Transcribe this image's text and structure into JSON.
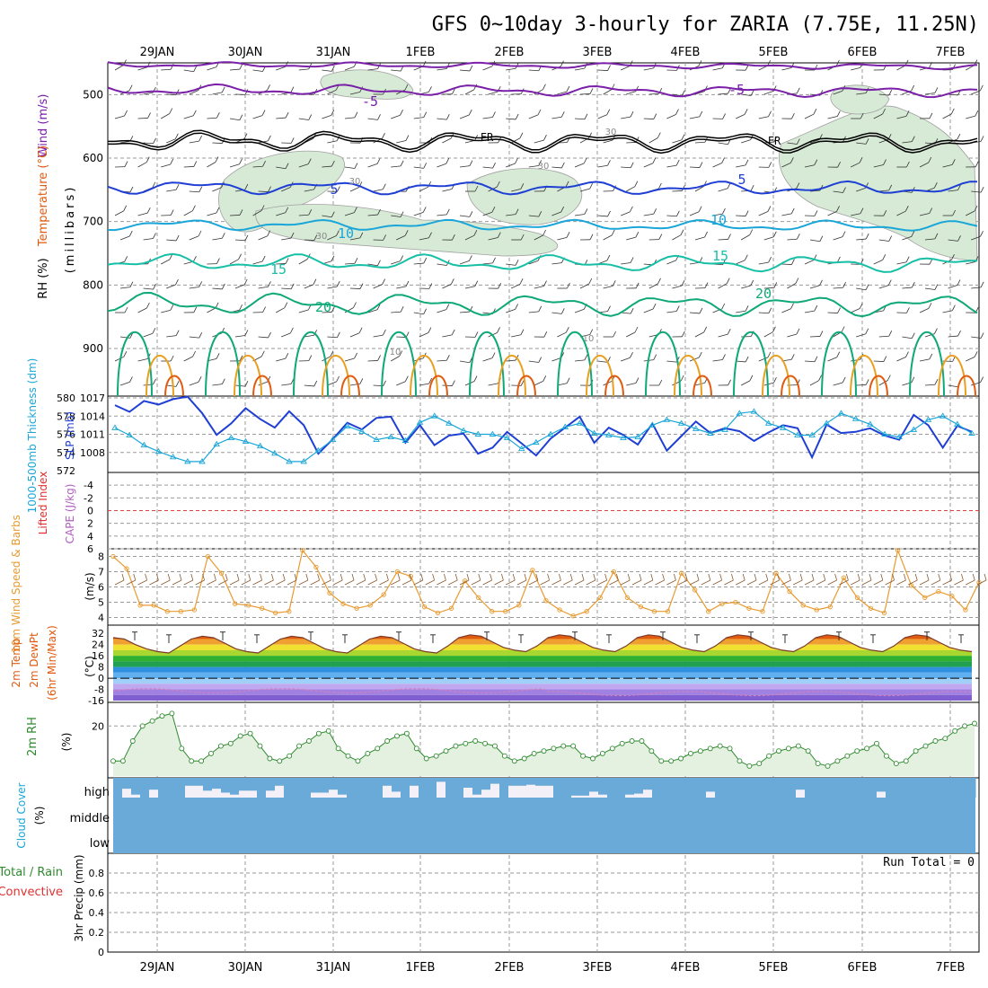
{
  "title": "GFS 0~10day 3-hourly for ZARIA (7.75E, 11.25N)",
  "dates": [
    "29JAN",
    "30JAN",
    "31JAN",
    "1FEB",
    "2FEB",
    "3FEB",
    "4FEB",
    "5FEB",
    "6FEB",
    "7FEB"
  ],
  "colors": {
    "purple": "#7a1fa8",
    "black": "#000000",
    "blue": "#1f3fd4",
    "cyan": "#1aa6d8",
    "teal": "#16bfa6",
    "green": "#0fa878",
    "orange": "#e8a020",
    "red_orange": "#e05a10",
    "rh_fill": "#d6ead6",
    "cloud": "#6aaad8",
    "cloud_gap": "#f4f0f8",
    "temp_fill_top": "#e05a10",
    "wind_line": "#e89a30",
    "rh_line": "#2e8a2e"
  },
  "upper_air": {
    "left_labels": {
      "wind": "Wind (m/s)",
      "temperature": "Temperature (°C)",
      "rh": "RH (%)",
      "pressure": "(millibars)"
    },
    "pressure_ticks": [
      "500",
      "600",
      "700",
      "800",
      "900"
    ],
    "isotherm_labels": [
      "-5",
      "-5",
      "FR",
      "FR",
      "5",
      "5",
      "10",
      "10",
      "15",
      "15",
      "20",
      "20"
    ],
    "rh_contour_labels": [
      "30",
      "30",
      "30",
      "30",
      "10",
      "10"
    ]
  },
  "slp_panel": {
    "left_label_thickness": "1000-500mb Thickness (dm)",
    "right_label_slp": "SLP (mb)",
    "thickness_ticks": [
      "580",
      "578",
      "576",
      "574",
      "572"
    ],
    "slp_ticks": [
      "1017",
      "1014",
      "1011",
      "1008"
    ]
  },
  "cape_panel": {
    "label_li": "Lifted Index",
    "label_cape": "CAPE (J/kg)",
    "ticks": [
      "-4",
      "-2",
      "0",
      "2",
      "4",
      "6"
    ]
  },
  "wind10_panel": {
    "label_left": "10m Wind Speed & Barbs",
    "label_units": "(m/s)",
    "ticks": [
      "8",
      "7",
      "6",
      "5",
      "4"
    ]
  },
  "temp_panel": {
    "label_left": "2m Temp",
    "label_mid": "2m DewPt",
    "label_sub": "(6hr Min/Max)",
    "label_units": "(°C)",
    "ticks": [
      "32",
      "24",
      "16",
      "8",
      "0",
      "-8",
      "-16"
    ]
  },
  "rh_panel": {
    "label_left": "2m RH",
    "label_units": "(%)",
    "ticks": [
      "20"
    ]
  },
  "cloud_panel": {
    "label_left": "Cloud Cover",
    "label_units": "(%)",
    "levels": [
      "high",
      "middle",
      "low"
    ]
  },
  "precip_panel": {
    "label_total": "Total / Rain",
    "label_conv": "Convective",
    "label_left": "3hr Precip (mm)",
    "run_total": "Run Total = 0",
    "ticks": [
      "0.8",
      "0.6",
      "0.4",
      "0.2",
      "0"
    ]
  },
  "chart_data": [
    {
      "type": "line",
      "name": "slp",
      "title": "",
      "ylabel": "SLP (mb)",
      "ylim": [
        1005,
        1017
      ],
      "values": [
        1015.8,
        1014.7,
        1016.5,
        1015.9,
        1016.8,
        1017.2,
        1014.5,
        1010.9,
        1012.8,
        1015.3,
        1013.5,
        1012.1,
        1014.8,
        1012.5,
        1007.8,
        1010.2,
        1012.9,
        1011.8,
        1013.7,
        1013.9,
        1009.6,
        1012.5,
        1009.2,
        1010.8,
        1011.1,
        1007.8,
        1008.8,
        1011.4,
        1009.5,
        1007.5,
        1010.3,
        1012.1,
        1013.9,
        1009.6,
        1012.1,
        1010.9,
        1009.3,
        1012.8,
        1008.3,
        1010.7,
        1013.1,
        1011.2,
        1012.0,
        1011.5,
        1009.9,
        1011.3,
        1012.5,
        1012.0,
        1007.2,
        1012.6,
        1011.2,
        1011.4,
        1012.0,
        1010.8,
        1010.1,
        1014.2,
        1012.5,
        1008.8,
        1012.4,
        1011.4
      ]
    },
    {
      "type": "line",
      "name": "thickness",
      "ylabel": "1000-500mb Thickness (dm)",
      "ylim": [
        572,
        580
      ],
      "values": [
        576.7,
        575.9,
        574.8,
        574.1,
        573.5,
        573.0,
        573.0,
        574.9,
        575.6,
        575.2,
        574.7,
        573.9,
        573.0,
        573.0,
        574.2,
        575.4,
        576.9,
        576.3,
        575.4,
        575.7,
        575.3,
        577.3,
        578.0,
        577.2,
        576.4,
        576.0,
        576.0,
        575.6,
        574.4,
        575.1,
        576.0,
        576.8,
        577.2,
        576.1,
        575.9,
        575.6,
        575.7,
        577.0,
        577.6,
        577.2,
        576.6,
        576.1,
        576.5,
        578.3,
        578.5,
        577.2,
        576.7,
        575.9,
        575.9,
        577.2,
        578.3,
        577.7,
        577.1,
        576.0,
        575.7,
        576.5,
        577.6,
        578.0,
        577.1,
        576.1
      ]
    },
    {
      "type": "line",
      "name": "wind10m",
      "ylabel": "Speed (m/s)",
      "ylim": [
        3.5,
        8.5
      ],
      "values": [
        8.0,
        7.2,
        4.8,
        4.8,
        4.4,
        4.4,
        4.5,
        8.0,
        6.9,
        4.9,
        4.8,
        4.6,
        4.3,
        4.4,
        8.4,
        7.3,
        5.6,
        4.9,
        4.6,
        4.8,
        5.5,
        7.0,
        6.7,
        4.7,
        4.3,
        4.6,
        6.4,
        5.3,
        4.4,
        4.4,
        4.8,
        7.1,
        5.1,
        4.5,
        4.1,
        4.4,
        5.3,
        7.0,
        5.3,
        4.7,
        4.4,
        4.4,
        6.9,
        5.8,
        4.4,
        4.9,
        5.0,
        4.6,
        4.4,
        6.9,
        5.7,
        4.8,
        4.5,
        4.7,
        6.6,
        5.3,
        4.6,
        4.3,
        8.4,
        6.1,
        5.3,
        5.7,
        5.4,
        4.5,
        6.3
      ]
    },
    {
      "type": "area",
      "name": "temp2m",
      "ylabel": "(°C)",
      "ylim": [
        -16,
        36
      ],
      "values": [
        29,
        28,
        24,
        21,
        19,
        18,
        23,
        28,
        30,
        29,
        25,
        21,
        19,
        18,
        23,
        28,
        30,
        29,
        25,
        21,
        19,
        18,
        23,
        28,
        30,
        29,
        25,
        21,
        19,
        18,
        23,
        29,
        31,
        30,
        26,
        22,
        20,
        19,
        23,
        29,
        31,
        30,
        26,
        22,
        20,
        19,
        23,
        29,
        31,
        30,
        26,
        22,
        20,
        19,
        23,
        29,
        31,
        30,
        26,
        22,
        20,
        19,
        23,
        29,
        31,
        30,
        26,
        22,
        20,
        19,
        23,
        29,
        31,
        30,
        26,
        22,
        20,
        19
      ]
    },
    {
      "type": "area",
      "name": "rh2m",
      "ylabel": "(%)",
      "ylim": [
        0,
        28
      ],
      "values": [
        6,
        6,
        14,
        20,
        22,
        24,
        25,
        11,
        6,
        6,
        9,
        12,
        13,
        16,
        17,
        12,
        7,
        6,
        8,
        12,
        14,
        17,
        18,
        11,
        8,
        6,
        9,
        11,
        14,
        16,
        17,
        11,
        7,
        8,
        10,
        12,
        13,
        14,
        13,
        12,
        8,
        6,
        7,
        9,
        10,
        11,
        12,
        12,
        8,
        7,
        9,
        11,
        13,
        14,
        14,
        10,
        6,
        6,
        7,
        9,
        10,
        11,
        12,
        11,
        6,
        4,
        5,
        8,
        10,
        11,
        12,
        10,
        5,
        4,
        6,
        8,
        10,
        11,
        13,
        8,
        5,
        6,
        10,
        12,
        14,
        15,
        18,
        20,
        21
      ]
    },
    {
      "type": "bar",
      "name": "high_cloud",
      "ylabel": "Cloud Cover (%)",
      "ylim": [
        0,
        100
      ],
      "values": [
        100,
        55,
        85,
        100,
        60,
        100,
        100,
        100,
        40,
        40,
        65,
        55,
        75,
        85,
        65,
        65,
        100,
        65,
        40,
        100,
        100,
        100,
        75,
        75,
        60,
        85,
        100,
        100,
        100,
        100,
        40,
        70,
        100,
        40,
        100,
        100,
        20,
        100,
        100,
        50,
        85,
        60,
        30,
        100,
        40,
        40,
        35,
        40,
        40,
        100,
        100,
        90,
        90,
        70,
        85,
        100,
        100,
        85,
        80,
        60,
        100,
        100,
        100,
        100,
        100,
        100,
        70,
        100,
        100,
        100,
        100,
        100,
        100,
        100,
        100,
        100,
        60,
        100,
        100,
        100,
        100,
        100,
        100,
        100,
        100,
        70,
        100,
        100,
        100,
        100,
        100,
        100,
        100,
        100,
        100,
        100
      ]
    },
    {
      "type": "bar",
      "name": "precip3hr",
      "ylabel": "3hr Precip (mm)",
      "ylim": [
        0,
        1
      ],
      "values": []
    }
  ]
}
